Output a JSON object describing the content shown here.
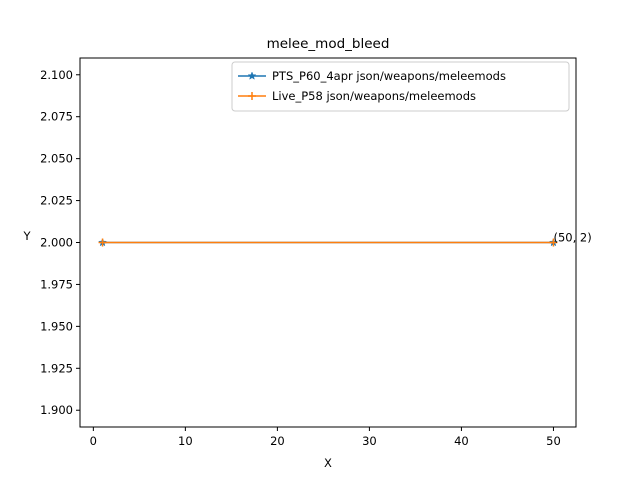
{
  "chart_data": {
    "type": "line",
    "title": "melee_mod_bleed",
    "xlabel": "X",
    "ylabel": "Y",
    "xlim": [
      -1.45,
      52.45
    ],
    "ylim": [
      1.89,
      2.11
    ],
    "xticks": [
      0,
      10,
      20,
      30,
      40,
      50
    ],
    "yticks": [
      1.9,
      1.925,
      1.95,
      1.975,
      2.0,
      2.025,
      2.05,
      2.075,
      2.1
    ],
    "ytick_labels": [
      "1.900",
      "1.925",
      "1.950",
      "1.975",
      "2.000",
      "2.025",
      "2.050",
      "2.075",
      "2.100"
    ],
    "grid": false,
    "legend_position": "top-right",
    "series": [
      {
        "name": "PTS_P60_4apr json/weapons/meleemods",
        "color": "#1f77b4",
        "marker": "star",
        "x": [
          1,
          50
        ],
        "y": [
          2,
          2
        ]
      },
      {
        "name": "Live_P58 json/weapons/meleemods",
        "color": "#ff7f0e",
        "marker": "plus",
        "x": [
          1,
          50
        ],
        "y": [
          2,
          2
        ]
      }
    ],
    "annotations": [
      {
        "text": "(50, 2)",
        "x": 50,
        "y": 2
      }
    ]
  }
}
